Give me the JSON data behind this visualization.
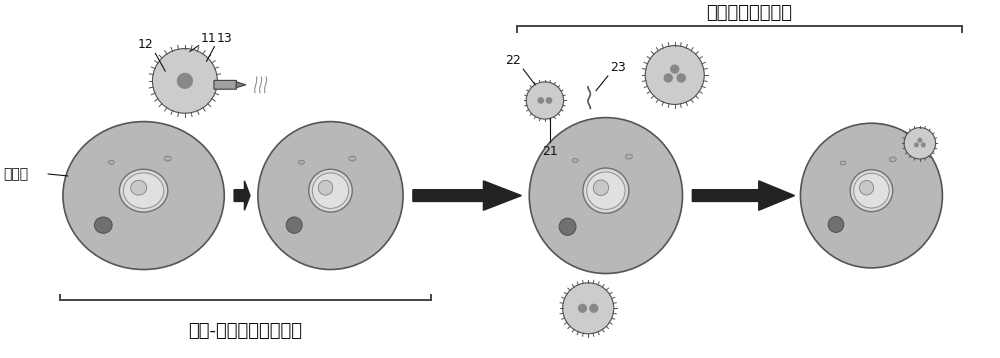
{
  "title_right": "多肽结合转染步骤",
  "title_left": "受体-细胞结构形成步骤",
  "label_靶细胞": "靶细胞",
  "label_11": "11",
  "label_12": "12",
  "label_13": "13",
  "label_21": "21",
  "label_22": "22",
  "label_23": "23",
  "bg_color": "#ffffff",
  "text_color": "#111111",
  "bracket_color": "#444444",
  "cell_fill": "#b8b8b8",
  "cell_edge": "#555555",
  "nucleus_fill": "#d8d8d8",
  "nucleus_edge": "#707070",
  "vesicle_fill": "#cccccc",
  "vesicle_edge": "#505050",
  "arrow_color": "#222222",
  "fontsize_title": 16,
  "fontsize_label": 9,
  "fontsize_cell_label": 10
}
